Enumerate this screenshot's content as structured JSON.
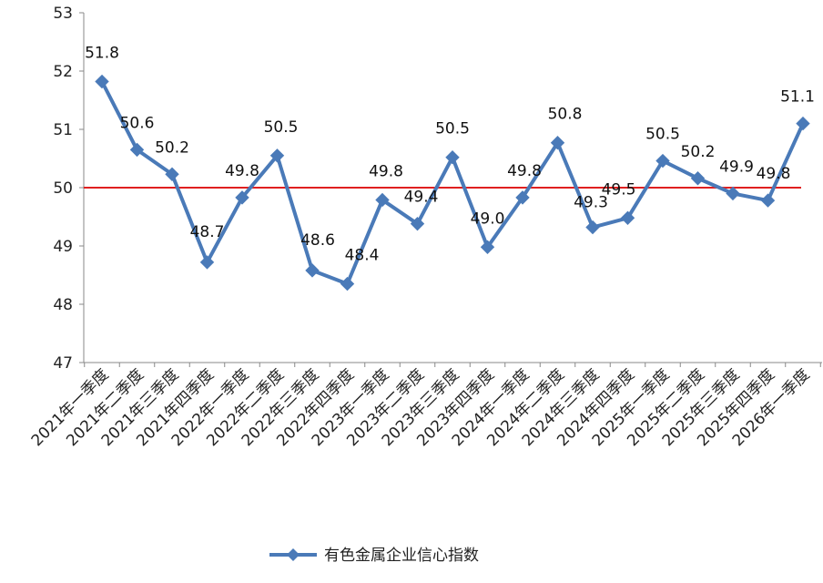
{
  "chart_data": {
    "type": "line",
    "title": "",
    "xlabel": "",
    "ylabel": "",
    "ylim": [
      47,
      53
    ],
    "yticks": [
      47,
      48,
      49,
      50,
      51,
      52,
      53
    ],
    "grid": false,
    "legend_position": "bottom",
    "reference_line": {
      "y": 50,
      "color": "#e02020"
    },
    "categories": [
      "2021年一季度",
      "2021年二季度",
      "2021年三季度",
      "2021年四季度",
      "2022年一季度",
      "2022年二季度",
      "2022年三季度",
      "2022年四季度",
      "2023年一季度",
      "2023年二季度",
      "2023年三季度",
      "2023年四季度",
      "2024年一季度",
      "2024年二季度",
      "2024年三季度",
      "2024年四季度",
      "2025年一季度",
      "2025年二季度",
      "2025年三季度",
      "2025年四季度",
      "2026年一季度"
    ],
    "series": [
      {
        "name": "有色金属企业信心指数",
        "color": "#4a7ab8",
        "marker": "diamond",
        "values": [
          51.82,
          50.65,
          50.23,
          48.72,
          49.83,
          50.55,
          48.58,
          48.35,
          49.79,
          49.38,
          50.52,
          48.98,
          49.83,
          50.77,
          49.32,
          49.48,
          50.46,
          50.16,
          49.9,
          49.78,
          51.1
        ],
        "labels": [
          "51.8",
          "50.6",
          "50.2",
          "48.7",
          "49.8",
          "50.5",
          "48.6",
          "48.4",
          "49.8",
          "49.4",
          "50.5",
          "49.0",
          "49.8",
          "50.8",
          "49.3",
          "49.5",
          "50.5",
          "50.2",
          "49.9",
          "49.8",
          "51.1"
        ]
      }
    ]
  }
}
